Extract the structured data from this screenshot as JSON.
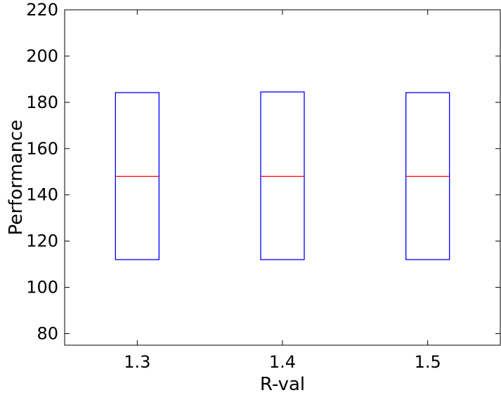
{
  "chart_data": {
    "type": "box",
    "title": "",
    "xlabel": "R-val",
    "ylabel": "Performance",
    "xlim": [
      1.25,
      1.55
    ],
    "ylim": [
      75,
      220
    ],
    "x_ticks": [
      {
        "value": 1.3,
        "label": "1.3"
      },
      {
        "value": 1.4,
        "label": "1.4"
      },
      {
        "value": 1.5,
        "label": "1.5"
      }
    ],
    "y_ticks": [
      {
        "value": 80,
        "label": "80"
      },
      {
        "value": 100,
        "label": "100"
      },
      {
        "value": 120,
        "label": "120"
      },
      {
        "value": 140,
        "label": "140"
      },
      {
        "value": 160,
        "label": "160"
      },
      {
        "value": 180,
        "label": "180"
      },
      {
        "value": 200,
        "label": "200"
      },
      {
        "value": 220,
        "label": "220"
      }
    ],
    "boxes": [
      {
        "x": 1.3,
        "q1": 112,
        "median": 148,
        "q3": 184.2
      },
      {
        "x": 1.4,
        "q1": 112,
        "median": 148,
        "q3": 184.5
      },
      {
        "x": 1.5,
        "q1": 112,
        "median": 148,
        "q3": 184.2
      }
    ],
    "grid": false,
    "colors": {
      "box": "#0000ff",
      "median": "#ff0000",
      "axes": "#000000"
    }
  }
}
